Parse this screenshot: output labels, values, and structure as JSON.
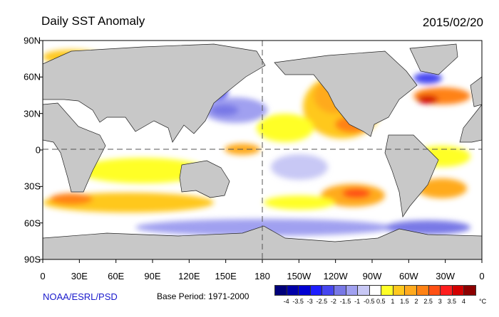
{
  "title": "Daily SST Anomaly",
  "date": "2015/02/20",
  "x_ticks": [
    "0",
    "30E",
    "60E",
    "90E",
    "120E",
    "150E",
    "180",
    "150W",
    "120W",
    "90W",
    "60W",
    "30W",
    "0"
  ],
  "y_ticks": [
    "90N",
    "60N",
    "30N",
    "0",
    "30S",
    "60S",
    "90S"
  ],
  "credit": "NOAA/ESRL/PSD",
  "base_period": "Base Period: 1971-2000",
  "colorbar": {
    "colors": [
      "#00007a",
      "#0000a8",
      "#0000d2",
      "#1e1eff",
      "#4646f0",
      "#7878e6",
      "#a0a0f0",
      "#c8c8f5",
      "#ffffff",
      "#ffff28",
      "#ffc81e",
      "#ffaa1e",
      "#ff8214",
      "#ff5014",
      "#ff1e1e",
      "#d20000",
      "#8c0000"
    ],
    "labels": [
      "-4",
      "-3.5",
      "-3",
      "-2.5",
      "-2",
      "-1.5",
      "-1",
      "-0.5",
      "0.5",
      "1",
      "1.5",
      "2",
      "2.5",
      "3",
      "3.5",
      "4"
    ],
    "unit": "°C"
  }
}
